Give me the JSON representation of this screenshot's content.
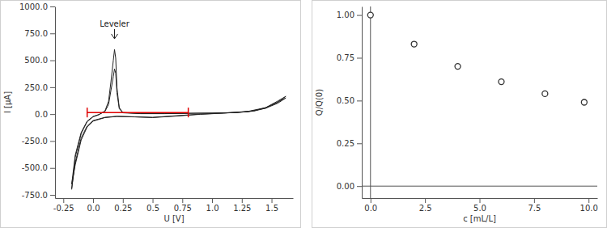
{
  "chart_data": [
    {
      "type": "line",
      "x_label": "U [V]",
      "y_label": "I [µA]",
      "xlim": [
        -0.32,
        1.68
      ],
      "ylim": [
        -780,
        1000
      ],
      "xticks": [
        -0.25,
        {
          "value": 0,
          "label": "0.0"
        },
        0.25,
        {
          "value": 0.5,
          "label": "0.5"
        },
        0.75,
        {
          "value": 1,
          "label": "1.0"
        },
        1.25,
        {
          "value": 1.5,
          "label": "1.5"
        }
      ],
      "yticks": [
        {
          "value": -750,
          "label": "-750.0"
        },
        {
          "value": -500,
          "label": "-500.0"
        },
        {
          "value": -250,
          "label": "-250.0"
        },
        {
          "value": 0,
          "label": "0.0"
        },
        {
          "value": 250,
          "label": "250.0"
        },
        {
          "value": 500,
          "label": "500.0"
        },
        {
          "value": 750,
          "label": "750.0"
        },
        {
          "value": 1000,
          "label": "1000.0"
        }
      ],
      "grid": false,
      "series": [
        {
          "color": "#222222",
          "line_style": "solid",
          "x": [
            -0.18,
            -0.15,
            -0.1,
            -0.05,
            0,
            0.05,
            0.1,
            0.13,
            0.15,
            0.17,
            0.18,
            0.19,
            0.2,
            0.22,
            0.25,
            0.4,
            0.6,
            0.8,
            1.0,
            1.2,
            1.35,
            1.45,
            1.55,
            1.62,
            1.55,
            1.45,
            1.3,
            1.1,
            0.9,
            0.7,
            0.5,
            0.35,
            0.2,
            0.1,
            0,
            -0.05,
            -0.1,
            -0.15,
            -0.18
          ],
          "values": [
            -700,
            -400,
            -180,
            -70,
            -25,
            -5,
            30,
            120,
            300,
            500,
            600,
            520,
            250,
            60,
            15,
            5,
            5,
            8,
            10,
            15,
            30,
            60,
            110,
            165,
            120,
            60,
            25,
            10,
            0,
            -15,
            -30,
            -25,
            -20,
            -30,
            -60,
            -110,
            -220,
            -450,
            -690
          ]
        },
        {
          "color": "#222222",
          "line_style": "solid",
          "x": [
            -0.18,
            -0.15,
            -0.1,
            -0.05,
            0,
            0.05,
            0.1,
            0.13,
            0.15,
            0.17,
            0.18,
            0.19,
            0.2,
            0.22,
            0.25,
            0.4,
            0.6,
            0.8,
            1.0,
            1.2,
            1.35,
            1.45,
            1.55,
            1.62,
            1.55,
            1.45,
            1.3,
            1.1,
            0.9,
            0.7,
            0.5,
            0.35,
            0.2,
            0.1,
            0,
            -0.05,
            -0.1,
            -0.15,
            -0.18
          ],
          "values": [
            -650,
            -380,
            -170,
            -65,
            -22,
            -3,
            25,
            90,
            220,
            350,
            420,
            380,
            200,
            50,
            12,
            4,
            4,
            7,
            9,
            14,
            28,
            55,
            100,
            150,
            110,
            55,
            22,
            9,
            -2,
            -18,
            -32,
            -26,
            -22,
            -32,
            -65,
            -120,
            -240,
            -470,
            -650
          ]
        }
      ],
      "annotations": [
        {
          "text": "Leveler",
          "x": 0.18,
          "y": 700
        }
      ],
      "integration_range": {
        "values": [
          -0.05,
          0.8
        ],
        "y": 15,
        "color": "#e00000"
      }
    },
    {
      "type": "scatter",
      "x_label": "c [mL/L]",
      "y_label": "Q/Q(0)",
      "xlim": [
        -0.4,
        10.4
      ],
      "ylim": [
        -0.07,
        1.05
      ],
      "xticks": [
        {
          "value": 0,
          "label": "0.0"
        },
        2.5,
        {
          "value": 5,
          "label": "5.0"
        },
        7.5,
        {
          "value": 10,
          "label": "10.0"
        }
      ],
      "yticks": [
        {
          "value": 0,
          "label": "0.00"
        },
        0.25,
        {
          "value": 0.5,
          "label": "0.50"
        },
        0.75,
        {
          "value": 1,
          "label": "1.00"
        }
      ],
      "grid": false,
      "marker": "circle-open",
      "color": "#333333",
      "x": [
        0,
        2,
        4,
        6,
        8,
        9.8
      ],
      "values": [
        1.0,
        0.83,
        0.7,
        0.61,
        0.54,
        0.49
      ]
    }
  ]
}
